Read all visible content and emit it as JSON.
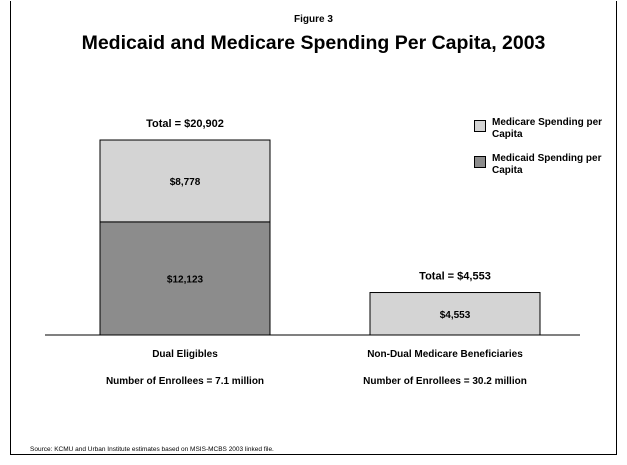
{
  "figure_label": "Figure 3",
  "source": "Source: KCMU and Urban Institute estimates based on MSIS-MCBS 2003 linked file.",
  "colors": {
    "medicare": "#d4d4d4",
    "medicaid": "#8c8c8c"
  },
  "chart_data": {
    "type": "bar",
    "stacked": true,
    "title": "Medicaid and Medicare Spending Per Capita, 2003",
    "categories": [
      "Dual Eligibles",
      "Non-Dual Medicare Beneficiaries"
    ],
    "enrollees": [
      "Number of Enrollees = 7.1 million",
      "Number of Enrollees = 30.2 million"
    ],
    "totals": [
      "Total = $20,902",
      "Total = $4,553"
    ],
    "series": [
      {
        "name": "Medicaid Spending per Capita",
        "values": [
          12123,
          0
        ],
        "labels": [
          "$12,123",
          ""
        ]
      },
      {
        "name": "Medicare Spending per Capita",
        "values": [
          8778,
          4553
        ],
        "labels": [
          "$8,778",
          "$4,553"
        ]
      }
    ],
    "legend": [
      "Medicare Spending per Capita",
      "Medicaid Spending per Capita"
    ],
    "legend_position": "top-right",
    "grid": false
  }
}
